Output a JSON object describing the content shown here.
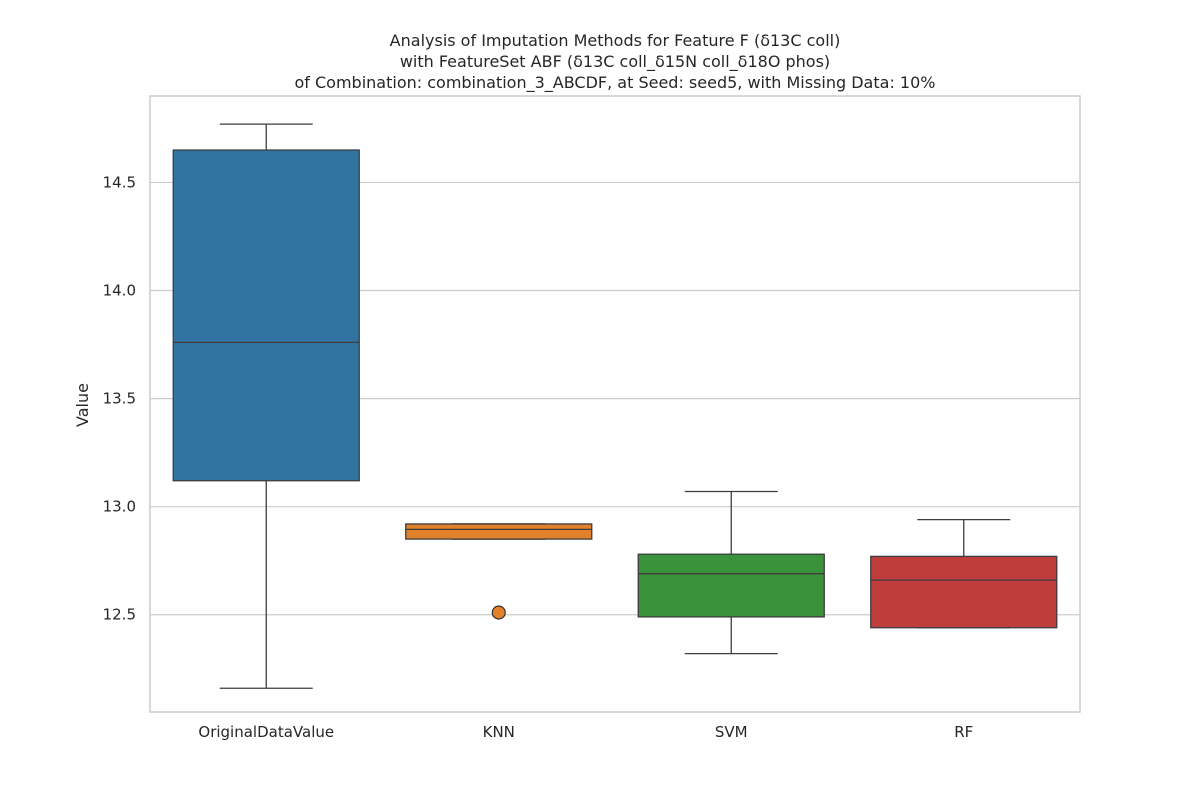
{
  "chart_data": {
    "type": "box",
    "title_lines": [
      "Analysis of Imputation Methods for Feature F (δ13C coll)",
      "with FeatureSet ABF (δ13C coll_δ15N coll_δ18O phos)",
      "of Combination: combination_3_ABCDF, at Seed: seed5, with Missing Data: 10%"
    ],
    "xlabel": "",
    "ylabel": "Value",
    "ylim": [
      12.05,
      14.9
    ],
    "yticks": [
      12.5,
      13.0,
      13.5,
      14.0,
      14.5
    ],
    "ytick_labels": [
      "12.5",
      "13.0",
      "13.5",
      "14.0",
      "14.5"
    ],
    "grid": true,
    "categories": [
      "OriginalDataValue",
      "KNN",
      "SVM",
      "RF"
    ],
    "boxes": [
      {
        "category": "OriginalDataValue",
        "whisker_low": 12.16,
        "q1": 13.12,
        "median": 13.76,
        "q3": 14.65,
        "whisker_high": 14.77,
        "outliers": [],
        "color": "#3274a1"
      },
      {
        "category": "KNN",
        "whisker_low": 12.85,
        "q1": 12.85,
        "median": 12.895,
        "q3": 12.92,
        "whisker_high": 12.92,
        "outliers": [
          12.51
        ],
        "color": "#e1812c"
      },
      {
        "category": "SVM",
        "whisker_low": 12.32,
        "q1": 12.49,
        "median": 12.69,
        "q3": 12.78,
        "whisker_high": 13.07,
        "outliers": [],
        "color": "#3a923a"
      },
      {
        "category": "RF",
        "whisker_low": 12.44,
        "q1": 12.44,
        "median": 12.66,
        "q3": 12.77,
        "whisker_high": 12.94,
        "outliers": [],
        "color": "#c03d3e"
      }
    ],
    "colors": {
      "grid": "#cccccc",
      "axes_edge": "#cccccc",
      "box_edge": "#3d3d3d",
      "text": "#262626"
    }
  }
}
